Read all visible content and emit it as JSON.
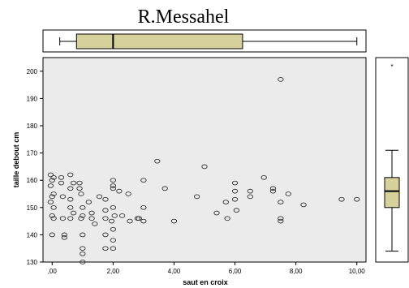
{
  "chart_data": {
    "type": "scatter",
    "title": "R.Messahel",
    "xlabel": "saut en croix",
    "ylabel": "taille debout cm",
    "xlim": [
      -0.3,
      10.3
    ],
    "ylim": [
      130,
      205
    ],
    "x_ticks": [
      0,
      2,
      4,
      6,
      8,
      10
    ],
    "x_tick_labels": [
      ",00",
      "2,00",
      "4,00",
      "6,00",
      "8,00",
      "10,00"
    ],
    "y_ticks": [
      130,
      140,
      150,
      160,
      170,
      180,
      190,
      200
    ],
    "y_tick_labels": [
      "130",
      "140",
      "150",
      "160",
      "170",
      "180",
      "190",
      "200"
    ],
    "plot_background": "#ebebeb",
    "marker": "open-circle",
    "points": [
      [
        -0.05,
        162
      ],
      [
        0.05,
        161
      ],
      [
        0.0,
        160
      ],
      [
        -0.05,
        158
      ],
      [
        0.05,
        155
      ],
      [
        0.0,
        154
      ],
      [
        -0.05,
        152
      ],
      [
        0.05,
        150
      ],
      [
        0.0,
        147
      ],
      [
        0.05,
        146
      ],
      [
        0.0,
        140
      ],
      [
        0.35,
        146
      ],
      [
        0.4,
        140
      ],
      [
        0.4,
        139
      ],
      [
        0.35,
        154
      ],
      [
        0.3,
        161
      ],
      [
        0.3,
        159
      ],
      [
        0.6,
        162
      ],
      [
        0.7,
        159
      ],
      [
        0.6,
        157
      ],
      [
        0.6,
        153
      ],
      [
        0.6,
        150
      ],
      [
        0.6,
        146
      ],
      [
        0.7,
        148
      ],
      [
        0.9,
        159
      ],
      [
        0.9,
        157
      ],
      [
        0.95,
        155
      ],
      [
        1.0,
        150
      ],
      [
        1.0,
        147
      ],
      [
        0.95,
        146
      ],
      [
        1.0,
        140
      ],
      [
        1.0,
        135
      ],
      [
        1.0,
        133
      ],
      [
        1.0,
        130
      ],
      [
        1.2,
        152
      ],
      [
        1.3,
        148
      ],
      [
        1.3,
        146
      ],
      [
        1.4,
        144
      ],
      [
        1.55,
        154
      ],
      [
        1.75,
        153
      ],
      [
        1.75,
        149
      ],
      [
        1.75,
        146
      ],
      [
        1.75,
        140
      ],
      [
        1.75,
        135
      ],
      [
        1.95,
        145
      ],
      [
        2.0,
        160
      ],
      [
        2.0,
        158
      ],
      [
        2.0,
        157
      ],
      [
        2.0,
        150
      ],
      [
        2.0,
        142
      ],
      [
        2.0,
        138
      ],
      [
        2.0,
        135
      ],
      [
        2.05,
        147
      ],
      [
        2.2,
        156
      ],
      [
        2.3,
        147
      ],
      [
        2.5,
        155
      ],
      [
        2.55,
        145
      ],
      [
        2.8,
        146
      ],
      [
        2.85,
        146
      ],
      [
        3.0,
        150
      ],
      [
        3.0,
        145
      ],
      [
        3.0,
        160
      ],
      [
        3.45,
        167
      ],
      [
        3.7,
        157
      ],
      [
        4.0,
        145
      ],
      [
        4.75,
        154
      ],
      [
        5.0,
        165
      ],
      [
        5.4,
        148
      ],
      [
        5.7,
        152
      ],
      [
        5.75,
        146
      ],
      [
        6.0,
        159
      ],
      [
        6.0,
        156
      ],
      [
        6.0,
        153
      ],
      [
        6.05,
        149
      ],
      [
        6.5,
        156
      ],
      [
        6.5,
        154
      ],
      [
        6.95,
        161
      ],
      [
        7.25,
        157
      ],
      [
        7.25,
        156
      ],
      [
        7.5,
        152
      ],
      [
        7.5,
        146
      ],
      [
        7.5,
        145
      ],
      [
        7.5,
        197
      ],
      [
        7.75,
        155
      ],
      [
        8.25,
        151
      ],
      [
        9.5,
        153
      ],
      [
        10.0,
        153
      ]
    ],
    "x_boxplot": {
      "min": 0.25,
      "q1": 0.8,
      "median": 2.0,
      "q3": 6.25,
      "max": 10.0
    },
    "y_boxplot": {
      "min": 134,
      "q1": 150,
      "median": 156,
      "q3": 161,
      "max": 171,
      "outliers": [
        202
      ]
    },
    "box_color": "#d6d09a"
  }
}
